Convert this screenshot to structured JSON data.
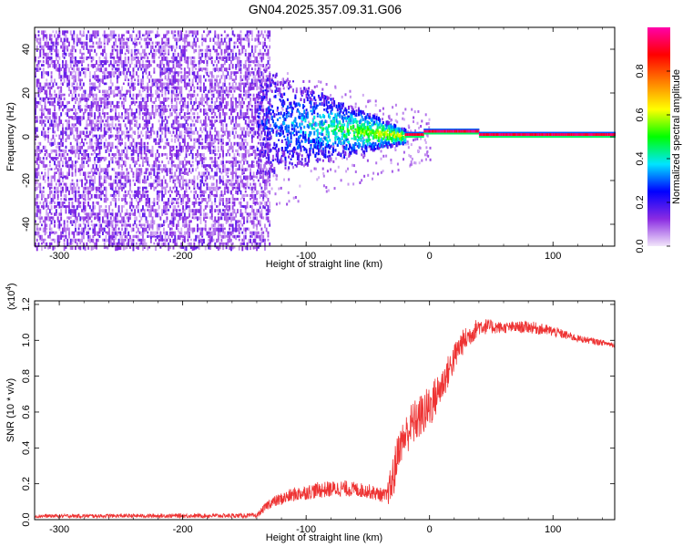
{
  "title": "GN04.2025.357.09.31.G06",
  "chart_data": [
    {
      "type": "heatmap",
      "xlabel": "Height of straight line (km)",
      "ylabel": "Frequency (Hz)",
      "xlim": [
        -320,
        150
      ],
      "ylim": [
        -50,
        50
      ],
      "xticks": [
        -300,
        -200,
        -100,
        0,
        100
      ],
      "yticks": [
        -40,
        -20,
        0,
        20,
        40
      ],
      "colorbar": {
        "label": "Normalized spectral amplitude",
        "range": [
          0,
          1
        ],
        "ticks": [
          "0.0",
          "0.2",
          "0.4",
          "0.6",
          "0.8"
        ],
        "colors": [
          "#f2e6fa",
          "#8a2be2",
          "#0000ff",
          "#00e5ff",
          "#00ff00",
          "#ffff00",
          "#ff8000",
          "#ff0000",
          "#ff00aa"
        ]
      },
      "features": {
        "noise_region_x": [
          -320,
          -130
        ],
        "cluster_region_x": [
          -140,
          -20
        ],
        "narrow_line_region_x": [
          -20,
          150
        ],
        "line_frequency": 1
      }
    },
    {
      "type": "line",
      "xlabel": "Height of straight line (km)",
      "ylabel": "SNR (10 * v/v)",
      "scale_label": "(x10",
      "scale_exp": "4",
      "scale_close": ")",
      "xlim": [
        -320,
        150
      ],
      "ylim": [
        0,
        12200
      ],
      "xticks": [
        -300,
        -200,
        -100,
        0,
        100
      ],
      "yticks": [
        "0.0",
        "0.2",
        "0.4",
        "0.6",
        "0.8",
        "1.0",
        "1.2"
      ],
      "line_color": "#ee3333",
      "envelope": [
        [
          -320,
          300,
          100
        ],
        [
          -140,
          350,
          100
        ],
        [
          -130,
          1200,
          600
        ],
        [
          -110,
          1800,
          1000
        ],
        [
          -90,
          2100,
          1200
        ],
        [
          -70,
          2200,
          1300
        ],
        [
          -50,
          2000,
          1200
        ],
        [
          -35,
          1700,
          900
        ],
        [
          -30,
          3500,
          700
        ],
        [
          -25,
          5000,
          3000
        ],
        [
          -15,
          6500,
          4000
        ],
        [
          0,
          7500,
          5000
        ],
        [
          10,
          8500,
          6500
        ],
        [
          25,
          10500,
          9000
        ],
        [
          40,
          11300,
          10300
        ],
        [
          60,
          11000,
          10400
        ],
        [
          80,
          11100,
          10400
        ],
        [
          100,
          10800,
          10200
        ],
        [
          120,
          10300,
          9900
        ],
        [
          150,
          9900,
          9600
        ]
      ]
    }
  ]
}
